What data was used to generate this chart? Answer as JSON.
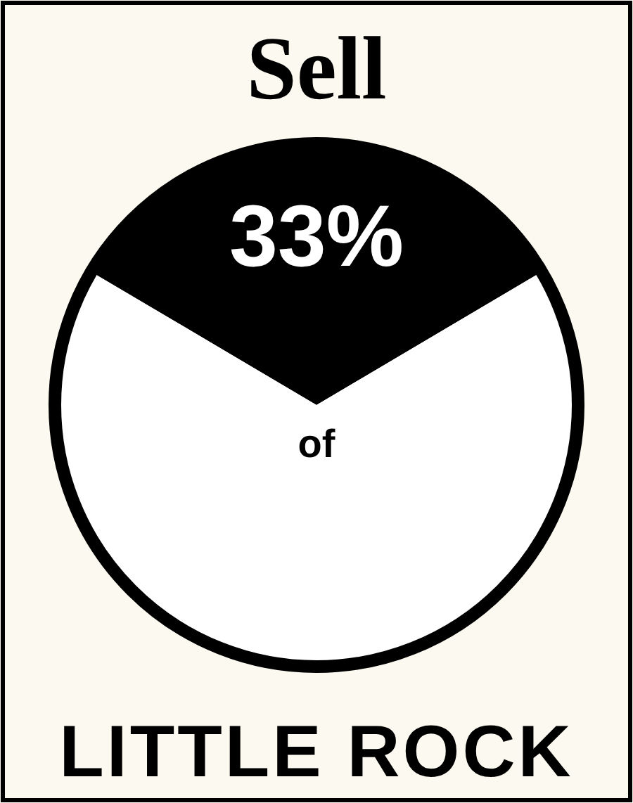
{
  "chart_data": {
    "type": "pie",
    "title": "Sell",
    "categories": [
      null,
      null
    ],
    "values": [
      33,
      67
    ],
    "colors": [
      "#000000",
      "#ffffff"
    ],
    "value_labels": [
      "33%",
      null
    ],
    "annotations": [
      "of",
      "LITTLE ROCK"
    ]
  }
}
